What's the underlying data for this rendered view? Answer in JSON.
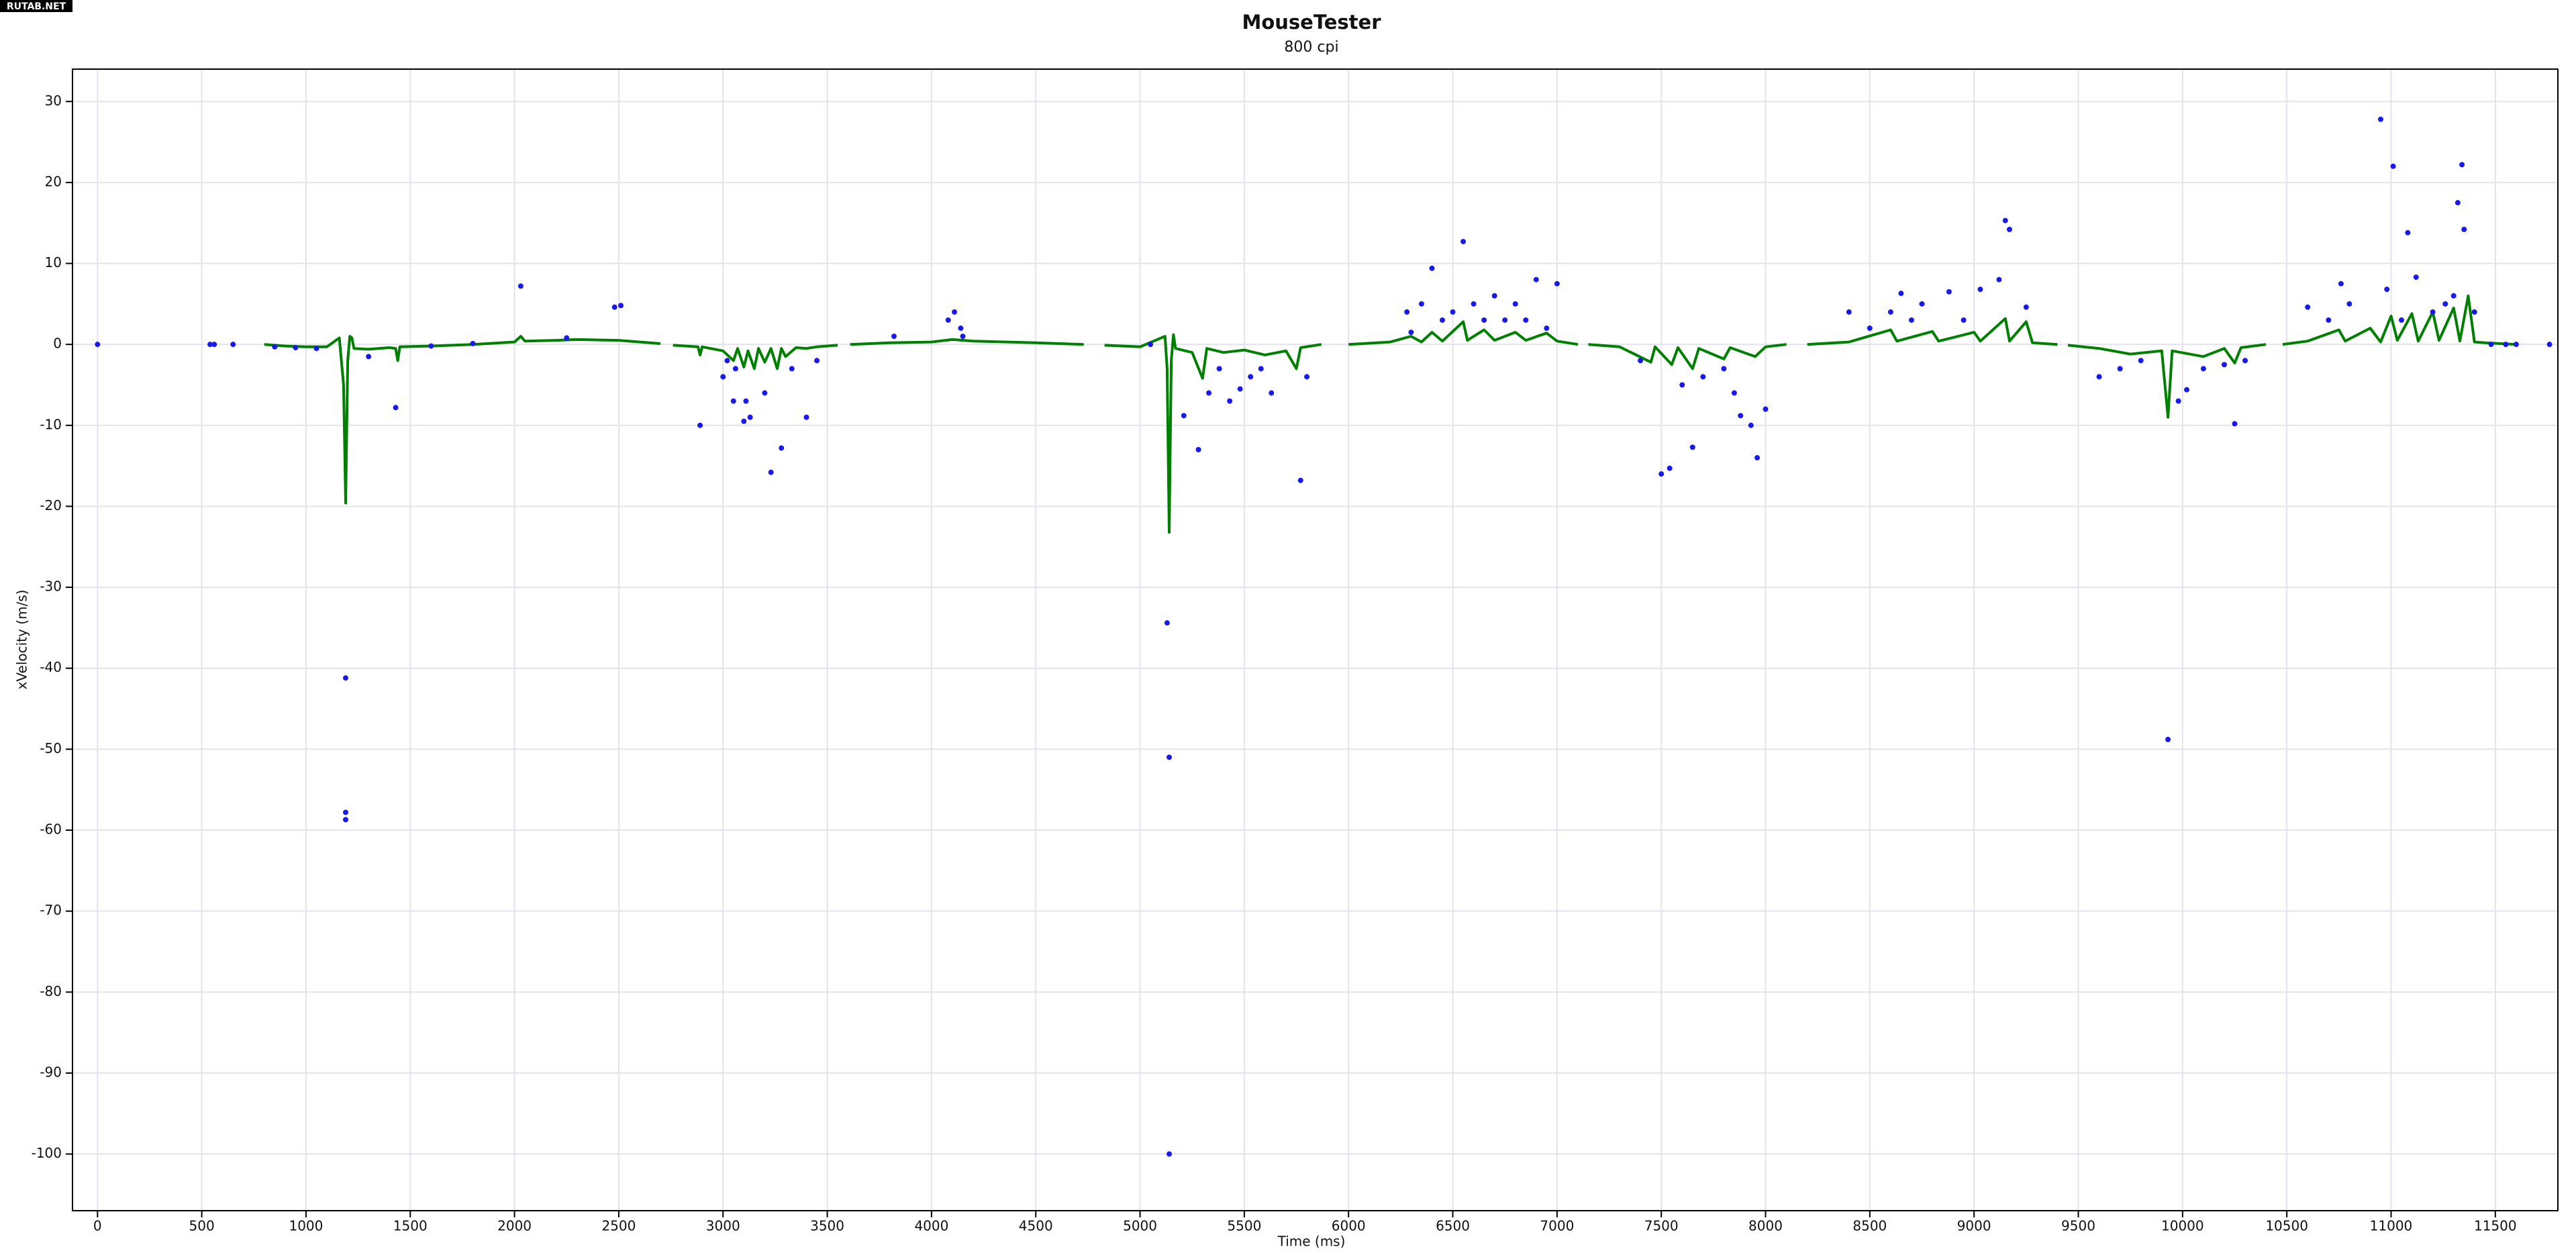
{
  "watermark": "RUTAB.NET",
  "chart_data": {
    "type": "line",
    "title": "MouseTester",
    "subtitle": "800 cpi",
    "x_label": "Time (ms)",
    "y_label": "xVelocity (m/s)",
    "xlim": [
      -120,
      11800
    ],
    "ylim": [
      -107,
      34
    ],
    "xticks": [
      0,
      500,
      1000,
      1500,
      2000,
      2500,
      3000,
      3500,
      4000,
      4500,
      5000,
      5500,
      6000,
      6500,
      7000,
      7500,
      8000,
      8500,
      9000,
      9500,
      10000,
      10500,
      11000,
      11500
    ],
    "yticks": [
      -100,
      -90,
      -80,
      -70,
      -60,
      -50,
      -40,
      -30,
      -20,
      -10,
      0,
      10,
      20,
      30
    ],
    "grid": true,
    "series": [
      {
        "type": "scatter",
        "color": "#1a1ae6",
        "x": [
          0,
          540,
          560,
          650,
          850,
          950,
          1050,
          1190,
          1190,
          1190,
          1300,
          1430,
          1600,
          1800,
          2030,
          2250,
          2480,
          2510,
          2890,
          3000,
          3020,
          3050,
          3060,
          3100,
          3110,
          3130,
          3200,
          3230,
          3280,
          3330,
          3400,
          3450,
          3820,
          4080,
          4110,
          4140,
          4150,
          5050,
          5130,
          5140,
          5140,
          5210,
          5280,
          5330,
          5380,
          5430,
          5480,
          5530,
          5580,
          5630,
          5770,
          5800,
          6280,
          6300,
          6350,
          6400,
          6450,
          6500,
          6550,
          6600,
          6650,
          6700,
          6750,
          6800,
          6850,
          6900,
          6950,
          7000,
          7400,
          7500,
          7540,
          7600,
          7650,
          7700,
          7800,
          7850,
          7880,
          7930,
          7960,
          8000,
          8400,
          8500,
          8600,
          8650,
          8700,
          8750,
          8880,
          8950,
          9030,
          9120,
          9150,
          9170,
          9250,
          9600,
          9700,
          9800,
          9930,
          9980,
          10020,
          10100,
          10200,
          10250,
          10300,
          10600,
          10700,
          10760,
          10800,
          10950,
          10980,
          11010,
          11050,
          11080,
          11120,
          11200,
          11260,
          11300,
          11320,
          11340,
          11350,
          11400,
          11480,
          11550,
          11600,
          11760
        ],
        "values": [
          0,
          0,
          0,
          0,
          -0.3,
          -0.4,
          -0.5,
          -41.2,
          -57.8,
          -58.7,
          -1.5,
          -7.8,
          -0.2,
          0.1,
          7.2,
          0.8,
          4.6,
          4.8,
          -10,
          -4,
          -2,
          -7,
          -3,
          -9.5,
          -7,
          -9,
          -6,
          -15.8,
          -12.8,
          -3,
          -9,
          -2,
          1,
          3,
          4,
          2,
          1,
          0,
          -34.4,
          -51,
          -100,
          -8.8,
          -13,
          -6,
          -3,
          -7,
          -5.5,
          -4,
          -3,
          -6,
          -16.8,
          -4,
          4,
          1.5,
          5,
          9.4,
          3,
          4,
          12.7,
          5,
          3,
          6,
          3,
          5,
          3,
          8,
          2,
          7.5,
          -2,
          -16,
          -15.3,
          -5,
          -12.7,
          -4,
          -3,
          -6,
          -8.8,
          -10,
          -14,
          -8,
          4,
          2,
          4,
          6.3,
          3,
          5,
          6.5,
          3,
          6.8,
          8,
          15.3,
          14.2,
          4.6,
          -4,
          -3,
          -2,
          -48.8,
          -7,
          -5.6,
          -3,
          -2.5,
          -9.8,
          -2,
          4.6,
          3,
          7.5,
          5,
          27.8,
          6.8,
          22,
          3,
          13.8,
          8.3,
          4,
          5,
          6,
          17.5,
          22.2,
          14.2,
          4,
          0,
          0,
          0,
          0
        ]
      },
      {
        "type": "line",
        "color": "#008000",
        "x": [
          800,
          900,
          1000,
          1100,
          1160,
          1180,
          1190,
          1200,
          1210,
          1220,
          1230,
          1300,
          1400,
          1430,
          1440,
          1450,
          1600,
          1800,
          2000,
          2030,
          2050,
          2200,
          2300,
          2500,
          2700,
          2710,
          2760,
          2880,
          2890,
          2900,
          3000,
          3050,
          3070,
          3100,
          3120,
          3150,
          3170,
          3200,
          3230,
          3260,
          3280,
          3300,
          3350,
          3400,
          3450,
          3550,
          3570,
          3610,
          3800,
          4000,
          4100,
          4200,
          4500,
          4730,
          4760,
          4830,
          5000,
          5120,
          5130,
          5140,
          5150,
          5160,
          5170,
          5250,
          5300,
          5320,
          5400,
          5500,
          5600,
          5700,
          5750,
          5770,
          5820,
          5870,
          5900,
          6000,
          6200,
          6300,
          6350,
          6400,
          6450,
          6550,
          6570,
          6650,
          6700,
          6800,
          6850,
          6950,
          7000,
          7100,
          7120,
          7150,
          7300,
          7450,
          7470,
          7550,
          7580,
          7650,
          7680,
          7800,
          7830,
          7950,
          8000,
          8100,
          8130,
          8200,
          8400,
          8600,
          8630,
          8800,
          8830,
          9000,
          9030,
          9150,
          9170,
          9250,
          9280,
          9400,
          9420,
          9450,
          9600,
          9750,
          9900,
          9930,
          9950,
          10100,
          10200,
          10250,
          10280,
          10400,
          10420,
          10480,
          10600,
          10750,
          10780,
          10900,
          10950,
          11000,
          11030,
          11100,
          11130,
          11200,
          11230,
          11300,
          11330,
          11370,
          11400,
          11450,
          11600
        ],
        "values": [
          0,
          -0.2,
          -0.3,
          -0.3,
          0.8,
          -5,
          -19.6,
          -2,
          1,
          0.8,
          -0.5,
          -0.6,
          -0.4,
          -0.5,
          -2,
          -0.3,
          -0.2,
          0,
          0.3,
          1,
          0.4,
          0.5,
          0.6,
          0.5,
          0.1,
          null,
          -0.1,
          -0.3,
          -1.3,
          -0.3,
          -0.8,
          -2,
          -0.5,
          -2.8,
          -0.8,
          -3,
          -0.5,
          -2.2,
          -0.5,
          -3,
          -0.5,
          -1.5,
          -0.4,
          -0.5,
          -0.3,
          -0.1,
          null,
          0,
          0.2,
          0.3,
          0.6,
          0.4,
          0.2,
          0,
          null,
          -0.1,
          -0.3,
          1,
          -3,
          -23.2,
          -2,
          1.2,
          -0.5,
          -1,
          -4.2,
          -0.5,
          -1,
          -0.7,
          -1.3,
          -0.8,
          -3,
          -0.4,
          -0.2,
          0,
          null,
          0,
          0.3,
          1,
          0.3,
          1.5,
          0.4,
          2.8,
          0.5,
          1.8,
          0.5,
          1.5,
          0.5,
          1.4,
          0.4,
          0,
          null,
          0,
          -0.3,
          -2.2,
          -0.3,
          -2.5,
          -0.4,
          -3,
          -0.5,
          -1.8,
          -0.4,
          -1.5,
          -0.3,
          0,
          null,
          0,
          0.3,
          1.8,
          0.4,
          1.6,
          0.4,
          1.5,
          0.4,
          3.2,
          0.4,
          2.8,
          0.2,
          0,
          null,
          -0.1,
          -0.5,
          -1.2,
          -0.8,
          -9,
          -0.8,
          -1.5,
          -0.5,
          -2.3,
          -0.4,
          0,
          null,
          0,
          0.4,
          1.8,
          0.4,
          2,
          0.3,
          3.5,
          0.5,
          3.8,
          0.4,
          4,
          0.5,
          4.5,
          0.4,
          6,
          0.3,
          0.2,
          0
        ]
      }
    ]
  }
}
